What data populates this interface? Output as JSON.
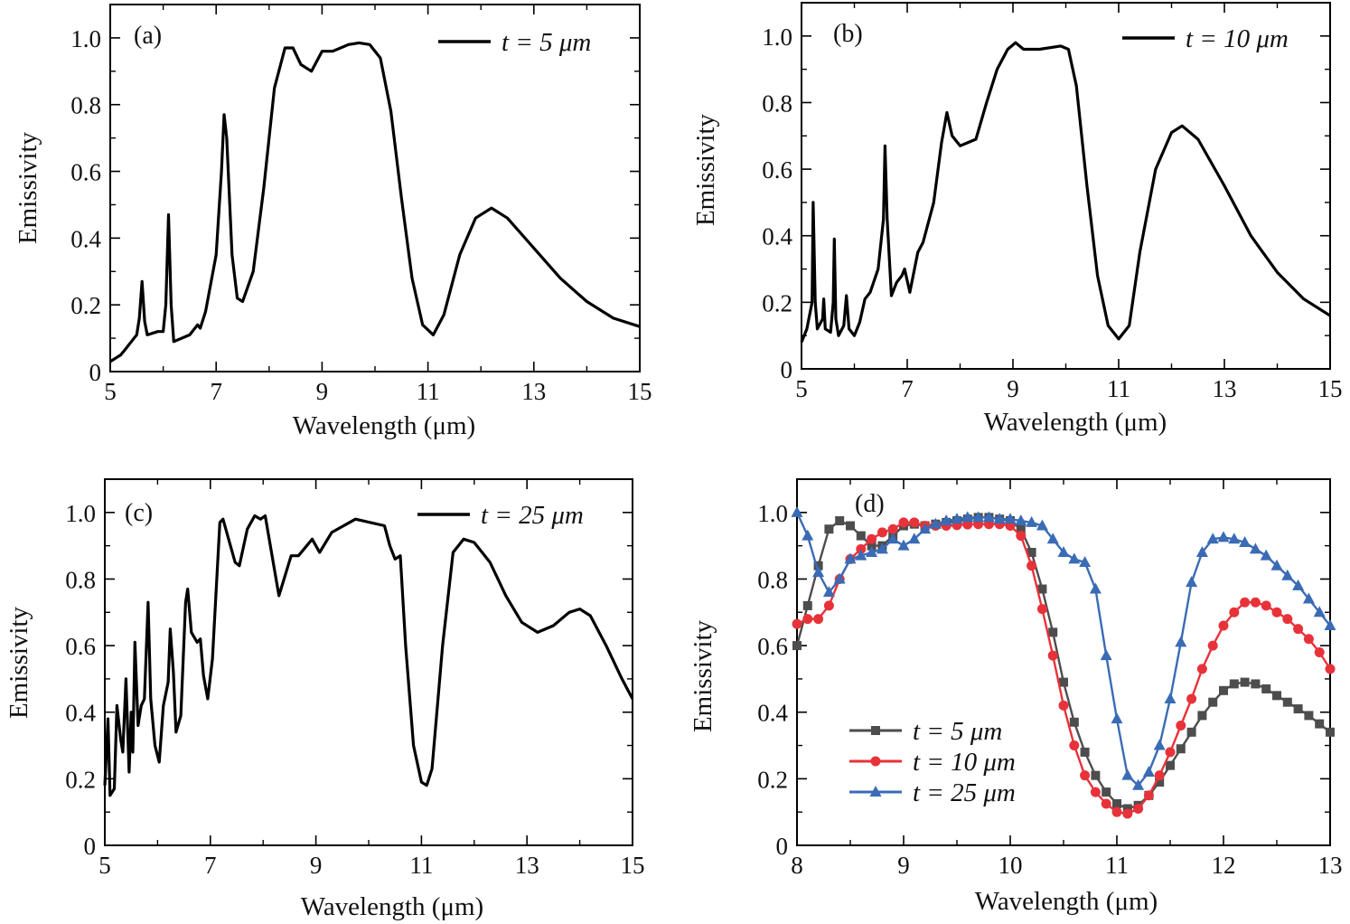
{
  "chart_data": [
    {
      "type": "line",
      "panel_label": "(a)",
      "xlabel": "Wavelength (μm)",
      "ylabel": "Emissivity",
      "xlim": [
        5,
        15
      ],
      "ylim": [
        0,
        1.1
      ],
      "xticks": [
        5,
        7,
        9,
        11,
        13,
        15
      ],
      "xtick_labels": [
        "5",
        "7",
        "9",
        "11",
        "13",
        "15"
      ],
      "yticks": [
        0,
        0.2,
        0.4,
        0.6,
        0.8,
        1.0
      ],
      "ytick_labels": [
        "0",
        "0.2",
        "0.4",
        "0.6",
        "0.8",
        "1.0"
      ],
      "legend_position": "top-right",
      "series": [
        {
          "name": "t = 5 μm",
          "color": "#000000",
          "x": [
            5,
            5.2,
            5.3,
            5.4,
            5.5,
            5.55,
            5.6,
            5.65,
            5.7,
            5.9,
            6.0,
            6.05,
            6.1,
            6.15,
            6.2,
            6.5,
            6.65,
            6.7,
            6.8,
            7.0,
            7.1,
            7.15,
            7.2,
            7.3,
            7.4,
            7.5,
            7.7,
            7.9,
            8.1,
            8.3,
            8.45,
            8.6,
            8.8,
            9.0,
            9.2,
            9.5,
            9.7,
            9.9,
            10.1,
            10.3,
            10.5,
            10.7,
            10.9,
            11.1,
            11.3,
            11.6,
            11.9,
            12.2,
            12.5,
            13,
            13.5,
            14,
            14.5,
            15
          ],
          "y": [
            0.03,
            0.05,
            0.07,
            0.09,
            0.11,
            0.16,
            0.27,
            0.15,
            0.11,
            0.12,
            0.12,
            0.2,
            0.47,
            0.2,
            0.09,
            0.11,
            0.14,
            0.13,
            0.18,
            0.35,
            0.6,
            0.77,
            0.7,
            0.35,
            0.22,
            0.21,
            0.3,
            0.55,
            0.85,
            0.97,
            0.97,
            0.92,
            0.9,
            0.96,
            0.96,
            0.98,
            0.985,
            0.98,
            0.94,
            0.78,
            0.52,
            0.28,
            0.14,
            0.11,
            0.17,
            0.35,
            0.46,
            0.49,
            0.46,
            0.37,
            0.28,
            0.21,
            0.16,
            0.135
          ]
        }
      ]
    },
    {
      "type": "line",
      "panel_label": "(b)",
      "xlabel": "Wavelength (μm)",
      "ylabel": "Emissivity",
      "xlim": [
        5,
        15
      ],
      "ylim": [
        0,
        1.1
      ],
      "xticks": [
        5,
        7,
        9,
        11,
        13,
        15
      ],
      "xtick_labels": [
        "5",
        "7",
        "9",
        "11",
        "13",
        "15"
      ],
      "yticks": [
        0,
        0.2,
        0.4,
        0.6,
        0.8,
        1.0
      ],
      "ytick_labels": [
        "0",
        "0.2",
        "0.4",
        "0.6",
        "0.8",
        "1.0"
      ],
      "legend_position": "top-right",
      "series": [
        {
          "name": "t = 10 μm",
          "color": "#000000",
          "x": [
            5,
            5.1,
            5.2,
            5.22,
            5.26,
            5.3,
            5.4,
            5.42,
            5.45,
            5.55,
            5.6,
            5.62,
            5.65,
            5.7,
            5.8,
            5.85,
            5.9,
            6.0,
            6.1,
            6.2,
            6.3,
            6.45,
            6.55,
            6.58,
            6.62,
            6.7,
            6.8,
            6.9,
            6.95,
            7.05,
            7.2,
            7.3,
            7.5,
            7.65,
            7.75,
            7.85,
            8.0,
            8.15,
            8.3,
            8.5,
            8.7,
            8.9,
            9.05,
            9.2,
            9.5,
            9.9,
            10.05,
            10.2,
            10.4,
            10.6,
            10.8,
            11.0,
            11.2,
            11.4,
            11.7,
            12.0,
            12.2,
            12.5,
            13,
            13.5,
            14,
            14.5,
            15
          ],
          "y": [
            0.08,
            0.12,
            0.2,
            0.5,
            0.2,
            0.12,
            0.15,
            0.21,
            0.12,
            0.11,
            0.2,
            0.39,
            0.15,
            0.1,
            0.13,
            0.22,
            0.12,
            0.1,
            0.14,
            0.21,
            0.23,
            0.3,
            0.45,
            0.67,
            0.45,
            0.22,
            0.26,
            0.28,
            0.3,
            0.23,
            0.35,
            0.38,
            0.5,
            0.68,
            0.77,
            0.7,
            0.67,
            0.68,
            0.69,
            0.8,
            0.9,
            0.96,
            0.98,
            0.96,
            0.96,
            0.97,
            0.96,
            0.85,
            0.55,
            0.28,
            0.13,
            0.09,
            0.13,
            0.35,
            0.6,
            0.71,
            0.73,
            0.69,
            0.55,
            0.4,
            0.29,
            0.21,
            0.16
          ]
        }
      ]
    },
    {
      "type": "line",
      "panel_label": "(c)",
      "xlabel": "Wavelength (μm)",
      "ylabel": "Emissivity",
      "xlim": [
        5,
        15
      ],
      "ylim": [
        0,
        1.1
      ],
      "xticks": [
        5,
        7,
        9,
        11,
        13,
        15
      ],
      "xtick_labels": [
        "5",
        "7",
        "9",
        "11",
        "13",
        "15"
      ],
      "yticks": [
        0,
        0.2,
        0.4,
        0.6,
        0.8,
        1.0
      ],
      "ytick_labels": [
        "0",
        "0.2",
        "0.4",
        "0.6",
        "0.8",
        "1.0"
      ],
      "legend_position": "top-right",
      "series": [
        {
          "name": "t = 25 μm",
          "color": "#000000",
          "x": [
            5.0,
            5.06,
            5.1,
            5.18,
            5.23,
            5.3,
            5.34,
            5.4,
            5.46,
            5.5,
            5.53,
            5.57,
            5.63,
            5.69,
            5.75,
            5.82,
            5.87,
            5.95,
            6.03,
            6.11,
            6.2,
            6.24,
            6.3,
            6.35,
            6.44,
            6.53,
            6.57,
            6.64,
            6.75,
            6.81,
            6.87,
            6.95,
            7.04,
            7.18,
            7.24,
            7.47,
            7.55,
            7.7,
            7.84,
            7.95,
            8.04,
            8.3,
            8.53,
            8.67,
            8.93,
            9.07,
            9.3,
            9.75,
            10.3,
            10.4,
            10.5,
            10.6,
            10.7,
            10.85,
            11.0,
            11.1,
            11.2,
            11.4,
            11.6,
            11.8,
            12.0,
            12.3,
            12.6,
            12.9,
            13.2,
            13.5,
            13.8,
            14.0,
            14.2,
            14.5,
            14.8,
            15
          ],
          "y": [
            0.18,
            0.38,
            0.15,
            0.17,
            0.42,
            0.32,
            0.28,
            0.5,
            0.22,
            0.4,
            0.28,
            0.61,
            0.36,
            0.42,
            0.44,
            0.73,
            0.44,
            0.3,
            0.25,
            0.42,
            0.49,
            0.65,
            0.52,
            0.34,
            0.39,
            0.73,
            0.77,
            0.64,
            0.61,
            0.62,
            0.51,
            0.44,
            0.56,
            0.97,
            0.98,
            0.85,
            0.84,
            0.95,
            0.99,
            0.98,
            0.99,
            0.75,
            0.87,
            0.87,
            0.92,
            0.88,
            0.94,
            0.98,
            0.96,
            0.9,
            0.86,
            0.87,
            0.6,
            0.3,
            0.19,
            0.18,
            0.23,
            0.6,
            0.88,
            0.92,
            0.91,
            0.85,
            0.75,
            0.67,
            0.64,
            0.66,
            0.7,
            0.71,
            0.69,
            0.6,
            0.5,
            0.44
          ]
        }
      ]
    },
    {
      "type": "line",
      "panel_label": "(d)",
      "xlabel": "Wavelength (μm)",
      "ylabel": "Emissivity",
      "xlim": [
        8,
        13
      ],
      "ylim": [
        0,
        1.1
      ],
      "xticks": [
        8,
        9,
        10,
        11,
        12,
        13
      ],
      "xtick_labels": [
        "8",
        "9",
        "10",
        "11",
        "12",
        "13"
      ],
      "yticks": [
        0,
        0.2,
        0.4,
        0.6,
        0.8,
        1.0
      ],
      "ytick_labels": [
        "0",
        "0.2",
        "0.4",
        "0.6",
        "0.8",
        "1.0"
      ],
      "legend_position": "bottom-left",
      "x_all": [
        8.0,
        8.1,
        8.2,
        8.3,
        8.4,
        8.5,
        8.6,
        8.7,
        8.8,
        8.9,
        9.0,
        9.1,
        9.2,
        9.3,
        9.4,
        9.5,
        9.6,
        9.7,
        9.8,
        9.9,
        10.0,
        10.1,
        10.2,
        10.3,
        10.4,
        10.5,
        10.6,
        10.7,
        10.8,
        10.9,
        11.0,
        11.1,
        11.2,
        11.3,
        11.4,
        11.5,
        11.6,
        11.7,
        11.8,
        11.9,
        12.0,
        12.1,
        12.2,
        12.3,
        12.4,
        12.5,
        12.6,
        12.7,
        12.8,
        12.9,
        13.0
      ],
      "series": [
        {
          "name": "t = 5 μm",
          "color": "#4d4d4d",
          "marker": "square",
          "y": [
            0.6,
            0.72,
            0.84,
            0.95,
            0.975,
            0.96,
            0.93,
            0.9,
            0.9,
            0.93,
            0.96,
            0.965,
            0.96,
            0.965,
            0.97,
            0.975,
            0.98,
            0.985,
            0.985,
            0.98,
            0.975,
            0.95,
            0.88,
            0.77,
            0.64,
            0.49,
            0.37,
            0.28,
            0.21,
            0.16,
            0.125,
            0.11,
            0.12,
            0.15,
            0.19,
            0.24,
            0.29,
            0.34,
            0.39,
            0.43,
            0.465,
            0.485,
            0.49,
            0.485,
            0.47,
            0.45,
            0.43,
            0.41,
            0.39,
            0.365,
            0.34
          ]
        },
        {
          "name": "t = 10 μm",
          "color": "#e8323a",
          "marker": "circle",
          "y": [
            0.665,
            0.68,
            0.68,
            0.72,
            0.8,
            0.86,
            0.89,
            0.92,
            0.94,
            0.95,
            0.97,
            0.97,
            0.96,
            0.96,
            0.96,
            0.962,
            0.964,
            0.965,
            0.965,
            0.965,
            0.96,
            0.93,
            0.84,
            0.71,
            0.57,
            0.42,
            0.3,
            0.21,
            0.16,
            0.125,
            0.1,
            0.095,
            0.11,
            0.15,
            0.21,
            0.28,
            0.36,
            0.44,
            0.53,
            0.6,
            0.66,
            0.7,
            0.73,
            0.73,
            0.72,
            0.7,
            0.68,
            0.65,
            0.62,
            0.58,
            0.53
          ]
        },
        {
          "name": "t = 25 μm",
          "color": "#3a6bb5",
          "marker": "triangle",
          "y": [
            1.0,
            0.93,
            0.82,
            0.76,
            0.8,
            0.86,
            0.87,
            0.88,
            0.89,
            0.92,
            0.9,
            0.92,
            0.95,
            0.965,
            0.975,
            0.98,
            0.985,
            0.985,
            0.985,
            0.98,
            0.98,
            0.975,
            0.97,
            0.96,
            0.92,
            0.88,
            0.86,
            0.85,
            0.77,
            0.57,
            0.38,
            0.21,
            0.18,
            0.22,
            0.3,
            0.44,
            0.61,
            0.79,
            0.88,
            0.92,
            0.925,
            0.92,
            0.91,
            0.89,
            0.87,
            0.84,
            0.81,
            0.78,
            0.74,
            0.7,
            0.66
          ]
        }
      ]
    }
  ]
}
